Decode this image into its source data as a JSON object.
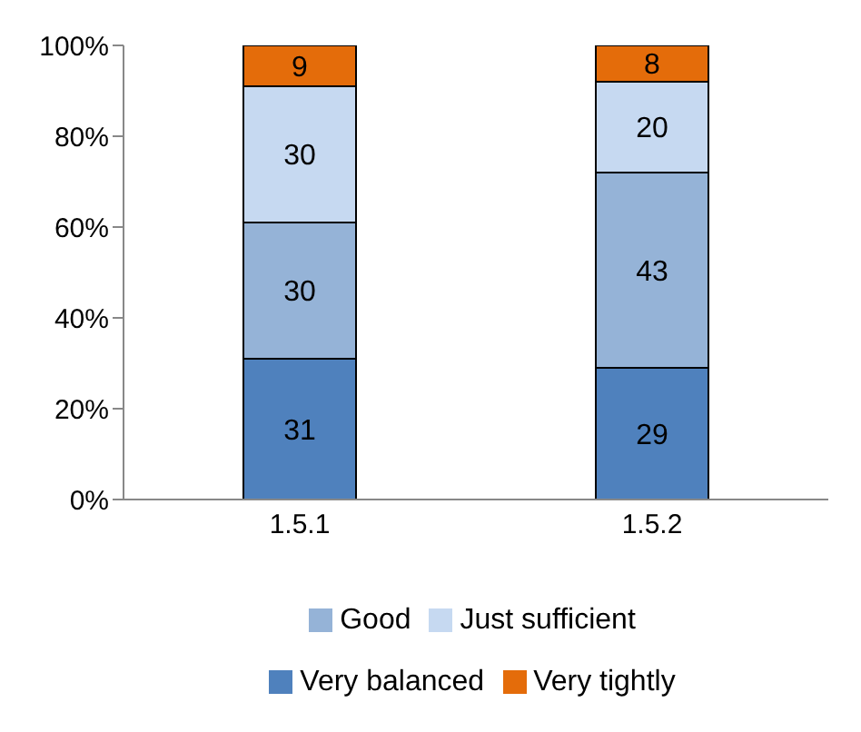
{
  "chart_data": {
    "type": "bar",
    "stacked": true,
    "categories": [
      "1.5.1",
      "1.5.2"
    ],
    "series": [
      {
        "name": "Very balanced",
        "color": "#4f81bd",
        "values": [
          31,
          29
        ]
      },
      {
        "name": "Good",
        "color": "#95b3d7",
        "values": [
          30,
          43
        ]
      },
      {
        "name": "Just sufficient",
        "color": "#c6d9f1",
        "values": [
          30,
          20
        ]
      },
      {
        "name": "Very tightly",
        "color": "#e46c0a",
        "values": [
          9,
          8
        ]
      }
    ],
    "ylim": [
      0,
      100
    ],
    "yticks": [
      {
        "value": 0,
        "label": "0%"
      },
      {
        "value": 20,
        "label": "20%"
      },
      {
        "value": 40,
        "label": "40%"
      },
      {
        "value": 60,
        "label": "60%"
      },
      {
        "value": 80,
        "label": "80%"
      },
      {
        "value": 100,
        "label": "100%"
      }
    ],
    "grid": false,
    "legend": "bottom",
    "data_labels": true
  }
}
